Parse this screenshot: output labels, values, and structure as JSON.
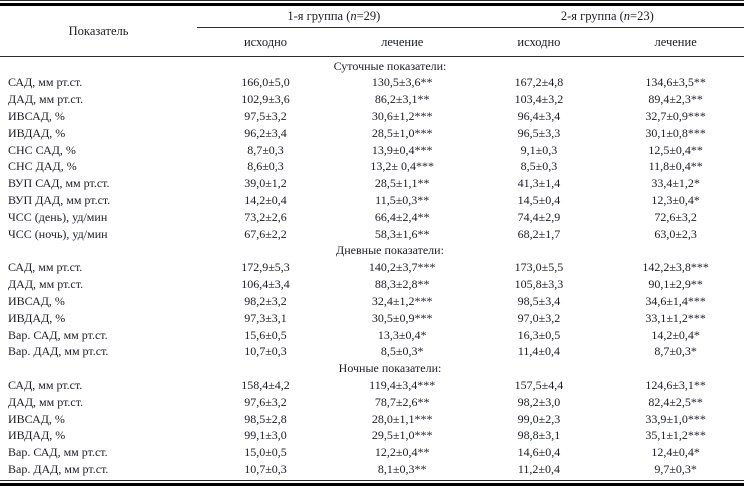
{
  "table": {
    "header": {
      "indicator_col": "Показатель",
      "groups": [
        {
          "pre": "1-я группа (",
          "n": "n",
          "post": "=29)"
        },
        {
          "pre": "2-я группа (",
          "n": "n",
          "post": "=23)"
        }
      ],
      "subheaders": [
        "исходно",
        "лечение",
        "исходно",
        "лечение"
      ]
    },
    "rows": [
      {
        "type": "section",
        "label": "Суточные показатели:"
      },
      {
        "type": "data",
        "cells": [
          "САД, мм рт.ст.",
          "166,0±5,0",
          "130,5±3,6**",
          "167,2±4,8",
          "134,6±3,5**"
        ]
      },
      {
        "type": "data",
        "cells": [
          "ДАД, мм рт.ст.",
          "102,9±3,6",
          "86,2±3,1**",
          "103,4±3,2",
          "89,4±2,3**"
        ]
      },
      {
        "type": "data",
        "cells": [
          "ИВСАД, %",
          "97,5±3,2",
          "30,6±1,2***",
          "96,4±3,4",
          "32,7±0,9***"
        ]
      },
      {
        "type": "data",
        "cells": [
          "ИВДАД, %",
          "96,2±3,4",
          "28,5±1,0***",
          "96,5±3,3",
          "30,1±0,8***"
        ]
      },
      {
        "type": "data",
        "cells": [
          "СНС САД, %",
          "8,7±0,3",
          "13,9±0,4***",
          "9,1±0,3",
          "12,5±0,4**"
        ]
      },
      {
        "type": "data",
        "cells": [
          "СНС ДАД, %",
          "8,6±0,3",
          "13,2± 0,4***",
          "8,5±0,3",
          "11,8±0,4**"
        ]
      },
      {
        "type": "data",
        "cells": [
          "ВУП САД, мм рт.ст.",
          "39,0±1,2",
          "28,5±1,1**",
          "41,3±1,4",
          "33,4±1,2*"
        ]
      },
      {
        "type": "data",
        "cells": [
          "ВУП ДАД, мм рт.ст.",
          "14,2±0,4",
          "11,5±0,3**",
          "14,5±0,4",
          "12,3±0,4*"
        ]
      },
      {
        "type": "data",
        "cells": [
          "ЧСС (день), уд/мин",
          "73,2±2,6",
          "66,4±2,4**",
          "74,4±2,9",
          "72,6±3,2"
        ]
      },
      {
        "type": "data",
        "cells": [
          "ЧСС (ночь), уд/мин",
          "67,6±2,2",
          "58,3±1,6**",
          "68,2±1,7",
          "63,0±2,3"
        ]
      },
      {
        "type": "section",
        "label": "Дневные показатели:"
      },
      {
        "type": "data",
        "cells": [
          "САД, мм рт.ст.",
          "172,9±5,3",
          "140,2±3,7***",
          "173,0±5,5",
          "142,2±3,8***"
        ]
      },
      {
        "type": "data",
        "cells": [
          "ДАД, мм рт.ст.",
          "106,4±3,4",
          "88,3±2,8**",
          "105,8±3,3",
          "90,1±2,9**"
        ]
      },
      {
        "type": "data",
        "cells": [
          "ИВСАД, %",
          "98,2±3,2",
          "32,4±1,2***",
          "98,5±3,4",
          "34,6±1,4***"
        ]
      },
      {
        "type": "data",
        "cells": [
          "ИВДАД, %",
          "97,3±3,1",
          "30,5±0,9***",
          "97,0±3,2",
          "33,1±1,2***"
        ]
      },
      {
        "type": "data",
        "cells": [
          "Вар. САД, мм рт.ст.",
          "15,6±0,5",
          "13,3±0,4*",
          "16,3±0,5",
          "14,2±0,4*"
        ]
      },
      {
        "type": "data",
        "cells": [
          "Вар. ДАД, мм рт.ст.",
          "10,7±0,3",
          "8,5±0,3*",
          "11,4±0,4",
          "8,7±0,3*"
        ]
      },
      {
        "type": "section",
        "label": "Ночные показатели:"
      },
      {
        "type": "data",
        "cells": [
          "САД, мм рт.ст.",
          "158,4±4,2",
          "119,4±3,4***",
          "157,5±4,4",
          "124,6±3,1**"
        ]
      },
      {
        "type": "data",
        "cells": [
          "ДАД, мм рт.ст.",
          "97,6±3,2",
          "78,7±2,6**",
          "98,2±3,0",
          "82,4±2,5**"
        ]
      },
      {
        "type": "data",
        "cells": [
          "ИВСАД, %",
          "98,5±2,8",
          "28,0±1,1***",
          "99,0±2,3",
          "33,9±1,0***"
        ]
      },
      {
        "type": "data",
        "cells": [
          "ИВДАД, %",
          "99,1±3,0",
          "29,5±1,0***",
          "98,8±3,1",
          "35,1±1,2***"
        ]
      },
      {
        "type": "data",
        "cells": [
          "Вар. САД, мм рт.ст.",
          "15,0±0,5",
          "12,2±0,4**",
          "14,6±0,4",
          "12,4±0,4*"
        ]
      },
      {
        "type": "data",
        "cells": [
          "Вар. ДАД, мм рт.ст.",
          "10,7±0,3",
          "8,1±0,3**",
          "11,2±0,4",
          "9,7±0,3*"
        ]
      }
    ]
  },
  "colors": {
    "text": "#1c1c28",
    "rule_thick": "#000000",
    "rule_thin": "#2b2b2b",
    "background": "#ffffff"
  }
}
